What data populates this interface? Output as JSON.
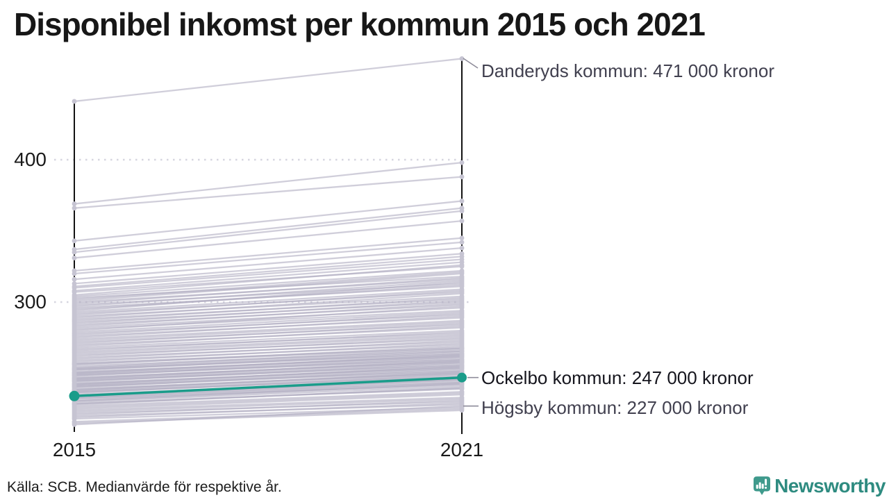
{
  "header": {
    "title": "Disponibel inkomst per kommun 2015 och 2021"
  },
  "footer": {
    "source": "Källa: SCB. Medianvärde för respektive år."
  },
  "branding": {
    "name": "Newsworthy",
    "icon": "chart-speech-bubble-icon",
    "icon_color": "#3f9a8c",
    "text_color": "#2e8b80"
  },
  "chart_data": {
    "type": "line",
    "subtype": "slope-chart",
    "title": "Disponibel inkomst per kommun 2015 och 2021",
    "x_categories": [
      "2015",
      "2021"
    ],
    "y_tick_labels": [
      "400",
      "300"
    ],
    "y_ticks": [
      400,
      300
    ],
    "ylim": [
      210,
      480
    ],
    "values_unit": "tusen kronor",
    "grid": "dotted-horizontal",
    "legend_position": "none",
    "axis_color": "#121212",
    "line_color": "#b0aec2",
    "gridline_color": "#d6d5df",
    "highlight": {
      "name": "Ockelbo kommun",
      "label": "Ockelbo kommun: 247 000 kronor",
      "values": [
        234,
        247
      ],
      "color": "#1a9c8a"
    },
    "annotated": [
      {
        "name": "Danderyds kommun",
        "label": "Danderyds kommun: 471 000 kronor",
        "values": [
          441,
          471
        ]
      },
      {
        "name": "Högsby kommun",
        "label": "Högsby kommun: 227 000 kronor",
        "values": [
          214,
          227
        ]
      }
    ],
    "background_lines": [
      [
        369,
        398
      ],
      [
        366,
        388
      ],
      [
        343,
        371
      ],
      [
        337,
        366
      ],
      [
        335,
        364
      ],
      [
        331,
        357
      ],
      [
        322,
        345
      ],
      [
        320,
        342
      ],
      [
        316,
        338
      ],
      [
        313,
        334
      ],
      [
        311,
        332
      ],
      [
        310,
        330
      ],
      [
        308,
        328
      ],
      [
        307,
        325
      ],
      [
        305,
        326
      ],
      [
        304,
        322
      ],
      [
        303,
        318
      ],
      [
        302,
        321
      ],
      [
        301,
        320
      ],
      [
        300,
        316
      ],
      [
        299,
        317
      ],
      [
        298,
        313
      ],
      [
        297,
        315
      ],
      [
        296,
        311
      ],
      [
        295,
        312
      ],
      [
        294,
        314
      ],
      [
        293,
        309
      ],
      [
        292,
        307
      ],
      [
        291,
        308
      ],
      [
        290,
        304
      ],
      [
        289,
        306
      ],
      [
        288,
        302
      ],
      [
        287,
        303
      ],
      [
        286,
        300
      ],
      [
        285,
        301
      ],
      [
        284,
        298
      ],
      [
        283,
        299
      ],
      [
        282,
        296
      ],
      [
        281,
        294
      ],
      [
        280,
        297
      ],
      [
        279,
        293
      ],
      [
        278,
        291
      ],
      [
        277,
        292
      ],
      [
        276,
        289
      ],
      [
        275,
        290
      ],
      [
        274,
        287
      ],
      [
        273,
        286
      ],
      [
        272,
        284
      ],
      [
        271,
        285
      ],
      [
        270,
        282
      ],
      [
        269,
        283
      ],
      [
        268,
        280
      ],
      [
        267,
        278
      ],
      [
        266,
        279
      ],
      [
        265,
        277
      ],
      [
        264,
        276
      ],
      [
        263,
        274
      ],
      [
        262,
        275
      ],
      [
        261,
        272
      ],
      [
        260,
        273
      ],
      [
        259,
        270
      ],
      [
        258,
        271
      ],
      [
        257,
        268
      ],
      [
        256,
        269
      ],
      [
        255,
        266
      ],
      [
        254,
        267
      ],
      [
        253,
        264
      ],
      [
        252,
        265
      ],
      [
        251,
        262
      ],
      [
        250,
        263
      ],
      [
        249,
        260
      ],
      [
        248,
        261
      ],
      [
        247,
        258
      ],
      [
        246,
        259
      ],
      [
        245,
        256
      ],
      [
        244,
        257
      ],
      [
        243,
        254
      ],
      [
        242,
        255
      ],
      [
        241,
        252
      ],
      [
        240,
        253
      ],
      [
        239,
        250
      ],
      [
        238,
        251
      ],
      [
        237,
        248
      ],
      [
        236,
        249
      ],
      [
        235,
        246
      ],
      [
        234,
        245
      ],
      [
        233,
        244
      ],
      [
        232,
        242
      ],
      [
        231,
        243
      ],
      [
        230,
        241
      ],
      [
        229,
        239
      ],
      [
        228,
        240
      ],
      [
        227,
        237
      ],
      [
        226,
        236
      ],
      [
        225,
        235
      ],
      [
        224,
        233
      ],
      [
        256.5,
        267.5
      ],
      [
        252.5,
        263.5
      ],
      [
        248.5,
        259.5
      ],
      [
        244.5,
        255.5
      ],
      [
        240.5,
        251.5
      ],
      [
        236.5,
        247.5
      ],
      [
        232.5,
        243.5
      ],
      [
        228.5,
        239.5
      ],
      [
        250.5,
        262.5
      ],
      [
        246.5,
        258.5
      ],
      [
        242.5,
        254.5
      ],
      [
        238.5,
        250.5
      ],
      [
        234.5,
        246.5
      ],
      [
        230.5,
        242.5
      ],
      [
        253.5,
        265.5
      ],
      [
        249.5,
        261.5
      ],
      [
        245.5,
        257.5
      ],
      [
        241.5,
        253.5
      ],
      [
        237.5,
        249.5
      ],
      [
        233.5,
        245.5
      ],
      [
        223,
        232
      ],
      [
        222,
        230
      ],
      [
        221,
        231
      ],
      [
        220,
        228
      ],
      [
        219,
        229
      ],
      [
        218,
        226
      ],
      [
        216,
        225
      ],
      [
        215,
        224
      ]
    ]
  }
}
